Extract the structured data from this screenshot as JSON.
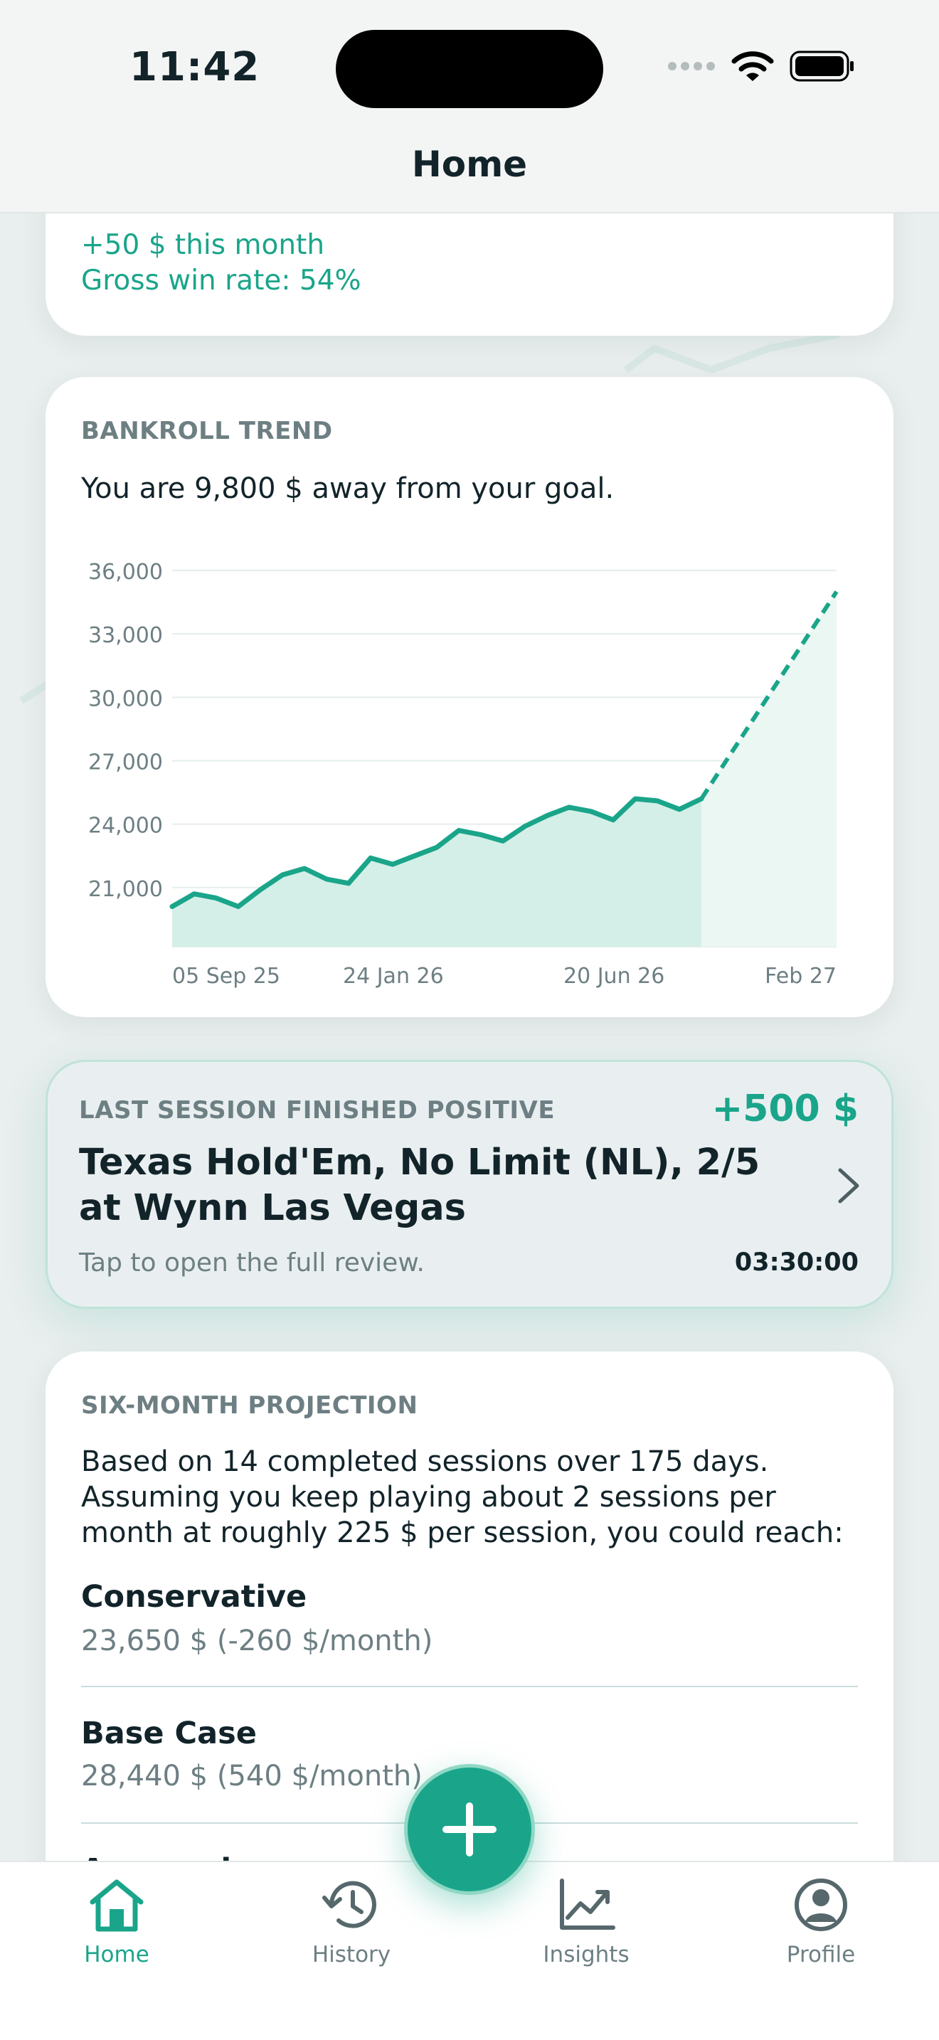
{
  "status_bar": {
    "time": "11:42"
  },
  "nav": {
    "title": "Home"
  },
  "summary": {
    "month_change": "+50 $ this month",
    "win_rate": "Gross win rate: 54%"
  },
  "bankroll_trend": {
    "label": "BANKROLL TREND",
    "goal_text": "You are 9,800 $ away from your goal."
  },
  "chart_data": {
    "type": "line",
    "y_ticks": [
      "36,000",
      "33,000",
      "30,000",
      "27,000",
      "24,000",
      "21,000"
    ],
    "x_tick_labels": [
      "05 Sep 25",
      "24 Jan 26",
      "20 Jun 26",
      "Feb 27"
    ],
    "ylim": [
      18200,
      36000
    ],
    "grid": true,
    "series": [
      {
        "values": [
          20100,
          20700,
          20500,
          20100,
          20900,
          21600,
          21900,
          21400,
          21200,
          22400,
          22100,
          22500,
          22900,
          23700,
          23500,
          23200,
          23900,
          24400,
          24800,
          24600,
          24200,
          25200,
          25100,
          24700,
          25200
        ]
      },
      {
        "values": [
          25200,
          35000
        ]
      }
    ],
    "colors": {
      "line": "#1aa58a",
      "fill": "#d4efe7",
      "projection_fill": "#eaf7f3"
    }
  },
  "last_session": {
    "label": "LAST SESSION FINISHED POSITIVE",
    "amount": "+500 $",
    "title": "Texas Hold'Em, No Limit (NL), 2/5 at Wynn Las Vegas",
    "hint": "Tap to open the full review.",
    "duration": "03:30:00"
  },
  "projection": {
    "label": "SIX-MONTH PROJECTION",
    "description": "Based on 14 completed sessions over 175 days. Assuming you keep playing about 2 sessions per month at roughly 225 $ per session, you could reach:",
    "scenarios": [
      {
        "name": "Conservative",
        "value": "23,650 $ (-260 $/month)"
      },
      {
        "name": "Base Case",
        "value": "28,440 $ (540 $/month)"
      },
      {
        "name": "Aggressive",
        "value": ""
      }
    ]
  },
  "tabs": [
    {
      "label": "Home",
      "icon": "home-icon"
    },
    {
      "label": "History",
      "icon": "history-icon"
    },
    {
      "label": "Insights",
      "icon": "insights-icon"
    },
    {
      "label": "Profile",
      "icon": "profile-icon"
    }
  ],
  "accent_color": "#1aa58a"
}
